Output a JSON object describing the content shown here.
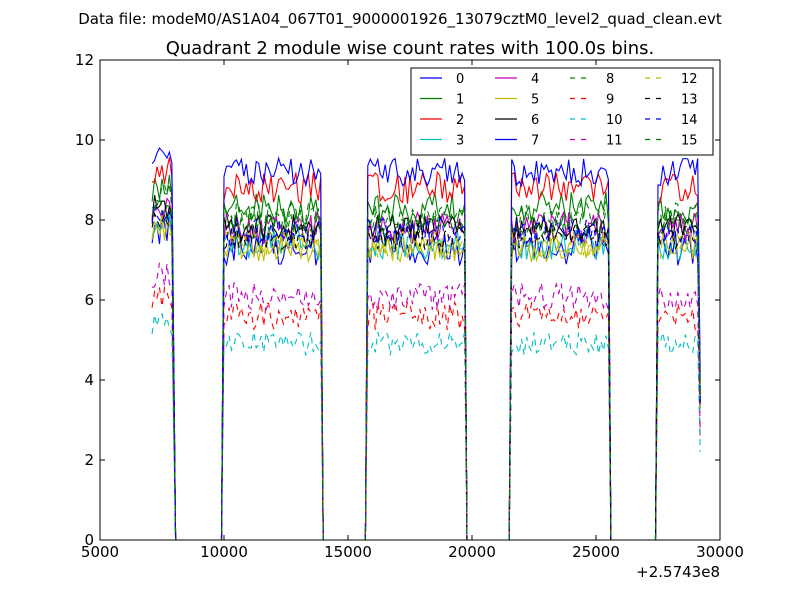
{
  "chart_data": {
    "type": "line",
    "suptitle": "Data file: modeM0/AS1A04_067T01_9000001926_13079cztM0_level2_quad_clean.evt",
    "title": "Quadrant 2 module wise count rates with 100.0s bins.",
    "xlabel": "",
    "ylabel": "",
    "x_offset_label": "+2.5743e8",
    "xlim": [
      5000,
      30000
    ],
    "ylim": [
      0,
      12
    ],
    "xticks": [
      5000,
      10000,
      15000,
      20000,
      25000,
      30000
    ],
    "xtick_labels": [
      "5000",
      "10000",
      "15000",
      "20000",
      "25000",
      "30000"
    ],
    "yticks": [
      0,
      2,
      4,
      6,
      8,
      10,
      12
    ],
    "ytick_labels": [
      "0",
      "2",
      "4",
      "6",
      "8",
      "10",
      "12"
    ],
    "grid": false,
    "legend_placement": "top-right",
    "legend_columns": 4,
    "bin_seconds": 100,
    "segments": [
      [
        7100,
        7950
      ],
      [
        10000,
        13900
      ],
      [
        15800,
        19700
      ],
      [
        21600,
        25500
      ],
      [
        27500,
        29100
      ]
    ],
    "series": [
      {
        "name": "0",
        "color": "#0000ff",
        "dash": "solid",
        "level": 7.3,
        "noise": 0.45
      },
      {
        "name": "1",
        "color": "#008000",
        "dash": "solid",
        "level": 8.3,
        "noise": 0.4
      },
      {
        "name": "2",
        "color": "#ff0000",
        "dash": "solid",
        "level": 8.8,
        "noise": 0.4
      },
      {
        "name": "3",
        "color": "#00bfbf",
        "dash": "solid",
        "level": 7.4,
        "noise": 0.4
      },
      {
        "name": "4",
        "color": "#bf00bf",
        "dash": "solid",
        "level": 7.8,
        "noise": 0.4
      },
      {
        "name": "5",
        "color": "#bfbf00",
        "dash": "solid",
        "level": 7.3,
        "noise": 0.35
      },
      {
        "name": "6",
        "color": "#000000",
        "dash": "solid",
        "level": 7.8,
        "noise": 0.35
      },
      {
        "name": "7",
        "color": "#0000ff",
        "dash": "solid",
        "level": 9.2,
        "noise": 0.35
      },
      {
        "name": "8",
        "color": "#008000",
        "dash": "dashed",
        "level": 7.9,
        "noise": 0.35
      },
      {
        "name": "9",
        "color": "#ff0000",
        "dash": "dashed",
        "level": 5.6,
        "noise": 0.35
      },
      {
        "name": "10",
        "color": "#00bfbf",
        "dash": "dashed",
        "level": 4.9,
        "noise": 0.3
      },
      {
        "name": "11",
        "color": "#bf00bf",
        "dash": "dashed",
        "level": 6.1,
        "noise": 0.35
      },
      {
        "name": "12",
        "color": "#bfbf00",
        "dash": "dashed",
        "level": 7.4,
        "noise": 0.35
      },
      {
        "name": "13",
        "color": "#000000",
        "dash": "dashed",
        "level": 7.6,
        "noise": 0.35
      },
      {
        "name": "14",
        "color": "#0000ff",
        "dash": "dashed",
        "level": 7.7,
        "noise": 0.35
      },
      {
        "name": "15",
        "color": "#008000",
        "dash": "dashed",
        "level": 8.1,
        "noise": 0.35
      }
    ]
  }
}
